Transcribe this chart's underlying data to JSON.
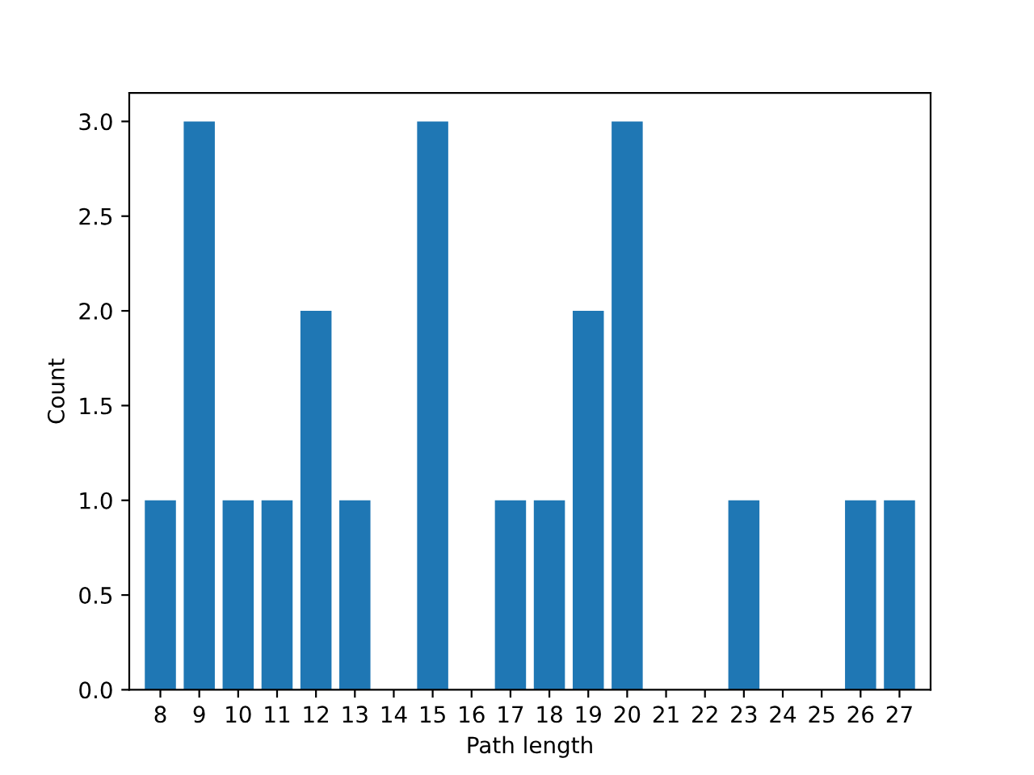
{
  "chart_data": {
    "type": "bar",
    "xlabel": "Path length",
    "ylabel": "Count",
    "categories": [
      "8",
      "9",
      "10",
      "11",
      "12",
      "13",
      "14",
      "15",
      "16",
      "17",
      "18",
      "19",
      "20",
      "21",
      "22",
      "23",
      "24",
      "25",
      "26",
      "27"
    ],
    "values": [
      1,
      3,
      1,
      1,
      2,
      1,
      null,
      3,
      null,
      1,
      1,
      2,
      3,
      null,
      null,
      1,
      null,
      null,
      1,
      1
    ],
    "color": "#1f77b4",
    "ylim": [
      0,
      3.15
    ],
    "yticks": [
      {
        "value": 0,
        "label": "0.0"
      },
      {
        "value": 0.5,
        "label": "0.5"
      },
      {
        "value": 1,
        "label": "1.0"
      },
      {
        "value": 1.5,
        "label": "1.5"
      },
      {
        "value": 2,
        "label": "2.0"
      },
      {
        "value": 2.5,
        "label": "2.5"
      },
      {
        "value": 3,
        "label": "3.0"
      }
    ],
    "grid": false
  }
}
